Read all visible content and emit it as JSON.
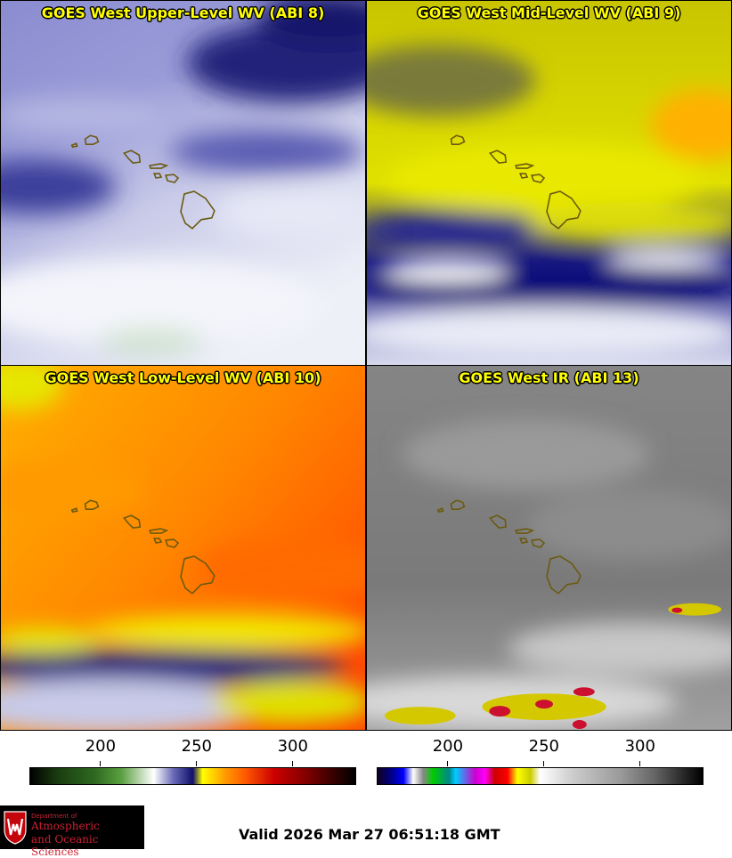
{
  "panels": [
    {
      "title": "GOES West Upper-Level WV (ABI 8)"
    },
    {
      "title": "GOES West Mid-Level WV (ABI 9)"
    },
    {
      "title": "GOES West Low-Level WV (ABI 10)"
    },
    {
      "title": "GOES West IR (ABI 13)"
    }
  ],
  "colorbars": [
    {
      "ticks": [
        "200",
        "250",
        "300"
      ],
      "values": [
        200,
        250,
        300
      ],
      "range": [
        163,
        333
      ]
    },
    {
      "ticks": [
        "200",
        "250",
        "300"
      ],
      "values": [
        200,
        250,
        300
      ],
      "range": [
        163,
        333
      ]
    }
  ],
  "logo": {
    "line1": "Department of",
    "line2": "Atmospheric",
    "line3": "and Oceanic Sciences"
  },
  "valid_time": "Valid 2026 Mar 27 06:51:18 GMT"
}
